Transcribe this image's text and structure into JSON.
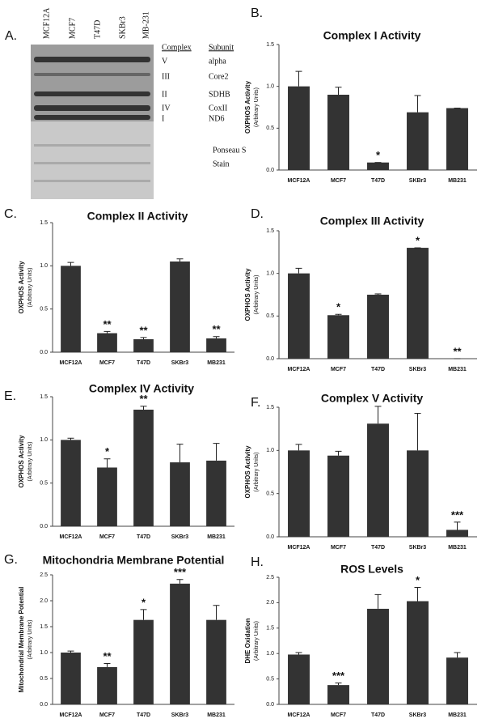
{
  "blot": {
    "panel": "A.",
    "lanes": [
      "MCF12A",
      "MCF7",
      "T47D",
      "SKBr3",
      "MB-231"
    ],
    "headers": [
      "Complex",
      "Subunit"
    ],
    "rows": [
      {
        "complex": "V",
        "subunit": "alpha"
      },
      {
        "complex": "III",
        "subunit": "Core2"
      },
      {
        "complex": "II",
        "subunit": "SDHB"
      },
      {
        "complex": "IV",
        "subunit": "CoxII"
      },
      {
        "complex": "I",
        "subunit": "ND6"
      }
    ],
    "stain": [
      "Ponseau S",
      "Stain"
    ]
  },
  "chart_data": [
    {
      "type": "bar",
      "panel": "B.",
      "title": "Complex I Activity",
      "ylabel": "OXPHOS Activity",
      "ylabel_sub": "(Arbitrary Units)",
      "categories": [
        "MCF12A",
        "MCF7",
        "T47D",
        "SKBr3",
        "MB231"
      ],
      "values": [
        1.0,
        0.9,
        0.09,
        0.69,
        0.74
      ],
      "errors": [
        0.18,
        0.09,
        0.0,
        0.2,
        0.0
      ],
      "annotations": [
        null,
        null,
        "*",
        null,
        null
      ],
      "color": "#333333",
      "ylim": [
        0,
        1.5
      ],
      "yticks": [
        {
          "value": 0,
          "label": "0.0"
        },
        0.5,
        {
          "value": 1,
          "label": "1.0"
        },
        1.5
      ]
    },
    {
      "type": "bar",
      "panel": "C.",
      "title": "Complex II Activity",
      "ylabel": "OXPHOS Activity",
      "ylabel_sub": "(Arbitrary Units)",
      "categories": [
        "MCF12A",
        "MCF7",
        "T47D",
        "SKBr3",
        "MB231"
      ],
      "values": [
        1.0,
        0.22,
        0.15,
        1.05,
        0.16
      ],
      "errors": [
        0.04,
        0.02,
        0.02,
        0.03,
        0.02
      ],
      "annotations": [
        null,
        "**",
        "**",
        null,
        "**"
      ],
      "color": "#333333",
      "ylim": [
        0,
        1.5
      ],
      "yticks": [
        {
          "value": 0,
          "label": "0.0"
        },
        0.5,
        {
          "value": 1,
          "label": "1.0"
        },
        1.5
      ]
    },
    {
      "type": "bar",
      "panel": "D.",
      "title": "Complex III Activity",
      "ylabel": "OXPHOS Activity",
      "ylabel_sub": "(Arbitrary Units)",
      "categories": [
        "MCF12A",
        "MCF7",
        "T47D",
        "SKBr3",
        "MB231"
      ],
      "values": [
        1.0,
        0.51,
        0.75,
        1.3,
        0
      ],
      "errors": [
        0.06,
        0.01,
        0.01,
        0.0,
        0.0
      ],
      "annotations": [
        null,
        "*",
        null,
        "*",
        "**"
      ],
      "color": "#333333",
      "ylim": [
        0,
        1.5
      ],
      "yticks": [
        {
          "value": 0,
          "label": "0.0"
        },
        0.5,
        {
          "value": 1,
          "label": "1.0"
        },
        1.5
      ]
    },
    {
      "type": "bar",
      "panel": "E.",
      "title": "Complex IV Activity",
      "ylabel": "OXPHOS Activity",
      "ylabel_sub": "(Arbitrary Units)",
      "categories": [
        "MCF12A",
        "MCF7",
        "T47D",
        "SKBr3",
        "MB231"
      ],
      "values": [
        1.0,
        0.68,
        1.35,
        0.74,
        0.76
      ],
      "errors": [
        0.02,
        0.1,
        0.04,
        0.21,
        0.2
      ],
      "annotations": [
        null,
        "*",
        "**",
        null,
        null
      ],
      "color": "#333333",
      "ylim": [
        0,
        1.5
      ],
      "yticks": [
        {
          "value": 0,
          "label": "0.0"
        },
        0.5,
        {
          "value": 1,
          "label": "1.0"
        },
        1.5
      ]
    },
    {
      "type": "bar",
      "panel": "F.",
      "title": "Complex V Activity",
      "ylabel": "OXPHOS Activity",
      "ylabel_sub": "(Arbitrary Units)",
      "categories": [
        "MCF12A",
        "MCF7",
        "T47D",
        "SKBr3",
        "MB231"
      ],
      "values": [
        1.0,
        0.94,
        1.31,
        1.0,
        0.08
      ],
      "errors": [
        0.07,
        0.05,
        0.2,
        0.43,
        0.09
      ],
      "annotations": [
        null,
        null,
        null,
        null,
        "***"
      ],
      "color": "#333333",
      "ylim": [
        0,
        1.5
      ],
      "yticks": [
        {
          "value": 0,
          "label": "0.0"
        },
        0.5,
        {
          "value": 1,
          "label": "1.0"
        },
        1.5
      ]
    },
    {
      "type": "bar",
      "panel": "G.",
      "title": "Mitochondria Membrane Potential",
      "ylabel": "Mitochondrial Membrane Potential",
      "ylabel_sub": "(Arbitrary Units)",
      "categories": [
        "MCF12A",
        "MCF7",
        "T47D",
        "SKBr3",
        "MB231"
      ],
      "values": [
        1.0,
        0.72,
        1.63,
        2.33,
        1.63
      ],
      "errors": [
        0.03,
        0.07,
        0.2,
        0.08,
        0.28
      ],
      "annotations": [
        null,
        "**",
        "*",
        "***",
        null
      ],
      "color": "#333333",
      "ylim": [
        0,
        2.5
      ],
      "yticks": [
        {
          "value": 0,
          "label": "0.0"
        },
        0.5,
        {
          "value": 1,
          "label": "1.0"
        },
        1.5,
        {
          "value": 2,
          "label": "2.0"
        },
        2.5
      ]
    },
    {
      "type": "bar",
      "panel": "H.",
      "title": "ROS Levels",
      "ylabel": "DHE Oxidation",
      "ylabel_sub": "(Arbitrary Units)",
      "categories": [
        "MCF12A",
        "MCF7",
        "T47D",
        "SKBr3",
        "MB231"
      ],
      "values": [
        0.98,
        0.38,
        1.88,
        2.03,
        0.92
      ],
      "errors": [
        0.04,
        0.04,
        0.28,
        0.27,
        0.1
      ],
      "annotations": [
        null,
        "***",
        null,
        "*",
        null
      ],
      "color": "#333333",
      "ylim": [
        0,
        2.5
      ],
      "yticks": [
        {
          "value": 0,
          "label": "0.0"
        },
        0.5,
        {
          "value": 1,
          "label": "1.0"
        },
        1.5,
        {
          "value": 2,
          "label": "2.0"
        },
        2.5
      ]
    }
  ]
}
